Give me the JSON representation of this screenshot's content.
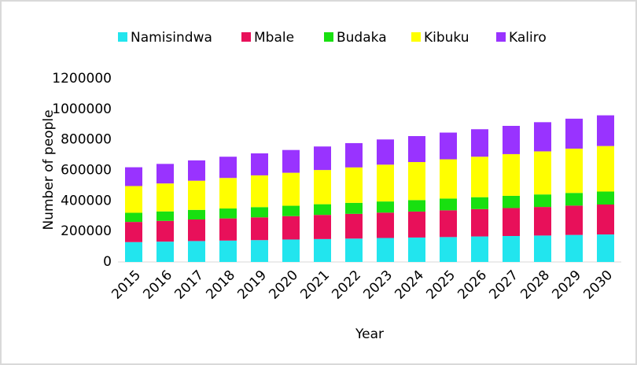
{
  "chart_data": {
    "type": "stacked_bar",
    "x_label": "Year",
    "y_label": "Number of people",
    "categories": [
      "2015",
      "2016",
      "2017",
      "2018",
      "2019",
      "2020",
      "2021",
      "2022",
      "2023",
      "2024",
      "2025",
      "2026",
      "2027",
      "2028",
      "2029",
      "2030"
    ],
    "series": [
      {
        "name": "Namisindwa",
        "color": "#22e5ee",
        "values": [
          130000,
          133000,
          137000,
          140000,
          143000,
          147000,
          150000,
          153000,
          157000,
          160000,
          163000,
          167000,
          170000,
          173000,
          177000,
          180000
        ]
      },
      {
        "name": "Mbale",
        "color": "#e8105a",
        "values": [
          132000,
          136000,
          141000,
          145000,
          149000,
          153000,
          158000,
          162000,
          166000,
          170000,
          175000,
          179000,
          183000,
          187000,
          192000,
          196000
        ]
      },
      {
        "name": "Budaka",
        "color": "#18e010",
        "values": [
          60000,
          62000,
          63000,
          65000,
          67000,
          68000,
          70000,
          72000,
          73000,
          75000,
          77000,
          78000,
          80000,
          82000,
          83000,
          85000
        ]
      },
      {
        "name": "Kibuku",
        "color": "#ffff00",
        "values": [
          175000,
          183000,
          191000,
          200000,
          208000,
          216000,
          224000,
          232000,
          241000,
          249000,
          257000,
          265000,
          273000,
          282000,
          290000,
          298000
        ]
      },
      {
        "name": "Kaliro",
        "color": "#9933ff",
        "values": [
          123000,
          128000,
          133000,
          139000,
          144000,
          149000,
          154000,
          159000,
          165000,
          170000,
          175000,
          180000,
          185000,
          191000,
          196000,
          201000
        ]
      }
    ],
    "ylim": [
      0,
      1200000
    ],
    "yticks": [
      0,
      200000,
      400000,
      600000,
      800000,
      1000000,
      1200000
    ],
    "legend": "top"
  }
}
